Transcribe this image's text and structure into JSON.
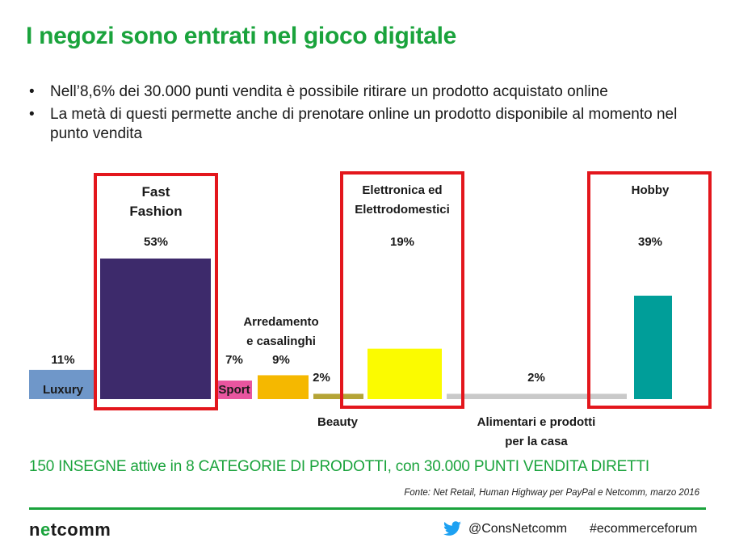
{
  "title": "I negozi sono entrati nel gioco digitale",
  "bullets": [
    "Nell’8,6% dei 30.000 punti vendita è possibile ritirare un prodotto acquistato online",
    "La metà di questi permette anche di prenotare online un prodotto disponibile al momento nel punto vendita"
  ],
  "chart_data": {
    "type": "bar",
    "title": "",
    "xlabel": "",
    "ylabel": "",
    "ylim": [
      0,
      60
    ],
    "grid": false,
    "categories": [
      "Luxury",
      "Fast Fashion",
      "Sport",
      "Arredamento e casalinghi",
      "Beauty",
      "Elettronica ed Elettrodomestici",
      "Alimentari e prodotti per la casa",
      "Hobby"
    ],
    "values": [
      11,
      53,
      7,
      9,
      2,
      19,
      2,
      39
    ],
    "value_labels": [
      "11%",
      "53%",
      "7%",
      "9%",
      "2%",
      "19%",
      "2%",
      "39%"
    ],
    "colors": [
      "#6f97c9",
      "#3d2a6b",
      "#e8559f",
      "#f5b800",
      "#b5a436",
      "#fbfb00",
      "#c9c9c9",
      "#009e99"
    ],
    "highlighted": [
      "Fast Fashion",
      "Elettronica ed Elettrodomestici",
      "Hobby"
    ],
    "highlight_color": "#e3161c"
  },
  "summary": "150 INSEGNE attive in 8 CATEGORIE DI PRODOTTI, con 30.000 PUNTI VENDITA DIRETTI",
  "source": "Fonte: Net Retail, Human Highway per PayPal e Netcomm, marzo 2016",
  "footer": {
    "logo_prefix": "n",
    "logo_dot": "e",
    "logo_suffix": "tcomm",
    "twitter_handle": "@ConsNetcomm",
    "hashtag": "#ecommerceforum",
    "icons": [
      "twitter-bird-icon"
    ]
  }
}
